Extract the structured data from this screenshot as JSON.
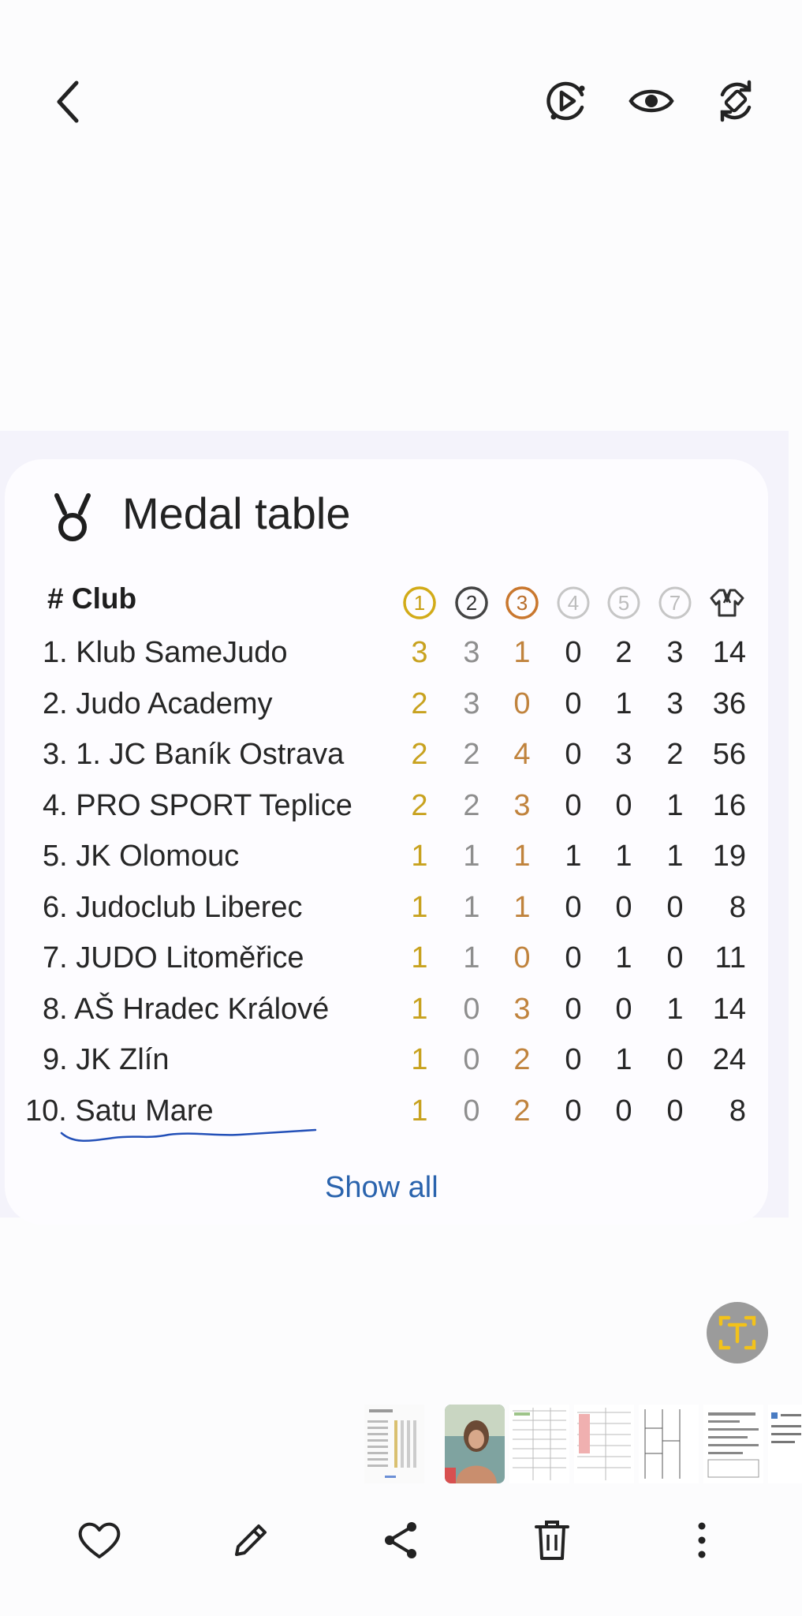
{
  "card": {
    "title": "Medal table",
    "header_club": "# Club",
    "columns": [
      "1",
      "2",
      "3",
      "4",
      "5",
      "7"
    ],
    "rows": [
      {
        "label": "1. Klub SameJudo",
        "gold": "3",
        "silver": "3",
        "bronze": "1",
        "c4": "0",
        "c5": "2",
        "c7": "3",
        "total": "14"
      },
      {
        "label": "2. Judo Academy",
        "gold": "2",
        "silver": "3",
        "bronze": "0",
        "c4": "0",
        "c5": "1",
        "c7": "3",
        "total": "36"
      },
      {
        "label": "3. 1. JC Baník Ostrava",
        "gold": "2",
        "silver": "2",
        "bronze": "4",
        "c4": "0",
        "c5": "3",
        "c7": "2",
        "total": "56"
      },
      {
        "label": "4. PRO SPORT Teplice",
        "gold": "2",
        "silver": "2",
        "bronze": "3",
        "c4": "0",
        "c5": "0",
        "c7": "1",
        "total": "16"
      },
      {
        "label": "5. JK Olomouc",
        "gold": "1",
        "silver": "1",
        "bronze": "1",
        "c4": "1",
        "c5": "1",
        "c7": "1",
        "total": "19"
      },
      {
        "label": "6. Judoclub Liberec",
        "gold": "1",
        "silver": "1",
        "bronze": "1",
        "c4": "0",
        "c5": "0",
        "c7": "0",
        "total": "8"
      },
      {
        "label": "7. JUDO Litoměřice",
        "gold": "1",
        "silver": "1",
        "bronze": "0",
        "c4": "0",
        "c5": "1",
        "c7": "0",
        "total": "11"
      },
      {
        "label": "8. AŠ Hradec Králové",
        "gold": "1",
        "silver": "0",
        "bronze": "3",
        "c4": "0",
        "c5": "0",
        "c7": "1",
        "total": "14"
      },
      {
        "label": "9. JK Zlín",
        "gold": "1",
        "silver": "0",
        "bronze": "2",
        "c4": "0",
        "c5": "1",
        "c7": "0",
        "total": "24"
      },
      {
        "label": "10. Satu Mare",
        "gold": "1",
        "silver": "0",
        "bronze": "2",
        "c4": "0",
        "c5": "0",
        "c7": "0",
        "total": "8"
      }
    ],
    "show_all": "Show all"
  },
  "icons": {
    "back": "chevron-left-icon",
    "motion": "motion-photo-icon",
    "eye": "eye-icon",
    "rotate": "rotate-icon",
    "ocr": "text-extract-icon",
    "like": "heart-icon",
    "edit": "pencil-icon",
    "share": "share-icon",
    "delete": "trash-icon",
    "more": "more-vertical-icon"
  },
  "colors": {
    "gold": "#c8a21f",
    "silver": "#8e8e8e",
    "bronze": "#c0833d",
    "link": "#2a63ad",
    "underline": "#2350b8",
    "ocr_accent": "#f2c21b"
  }
}
